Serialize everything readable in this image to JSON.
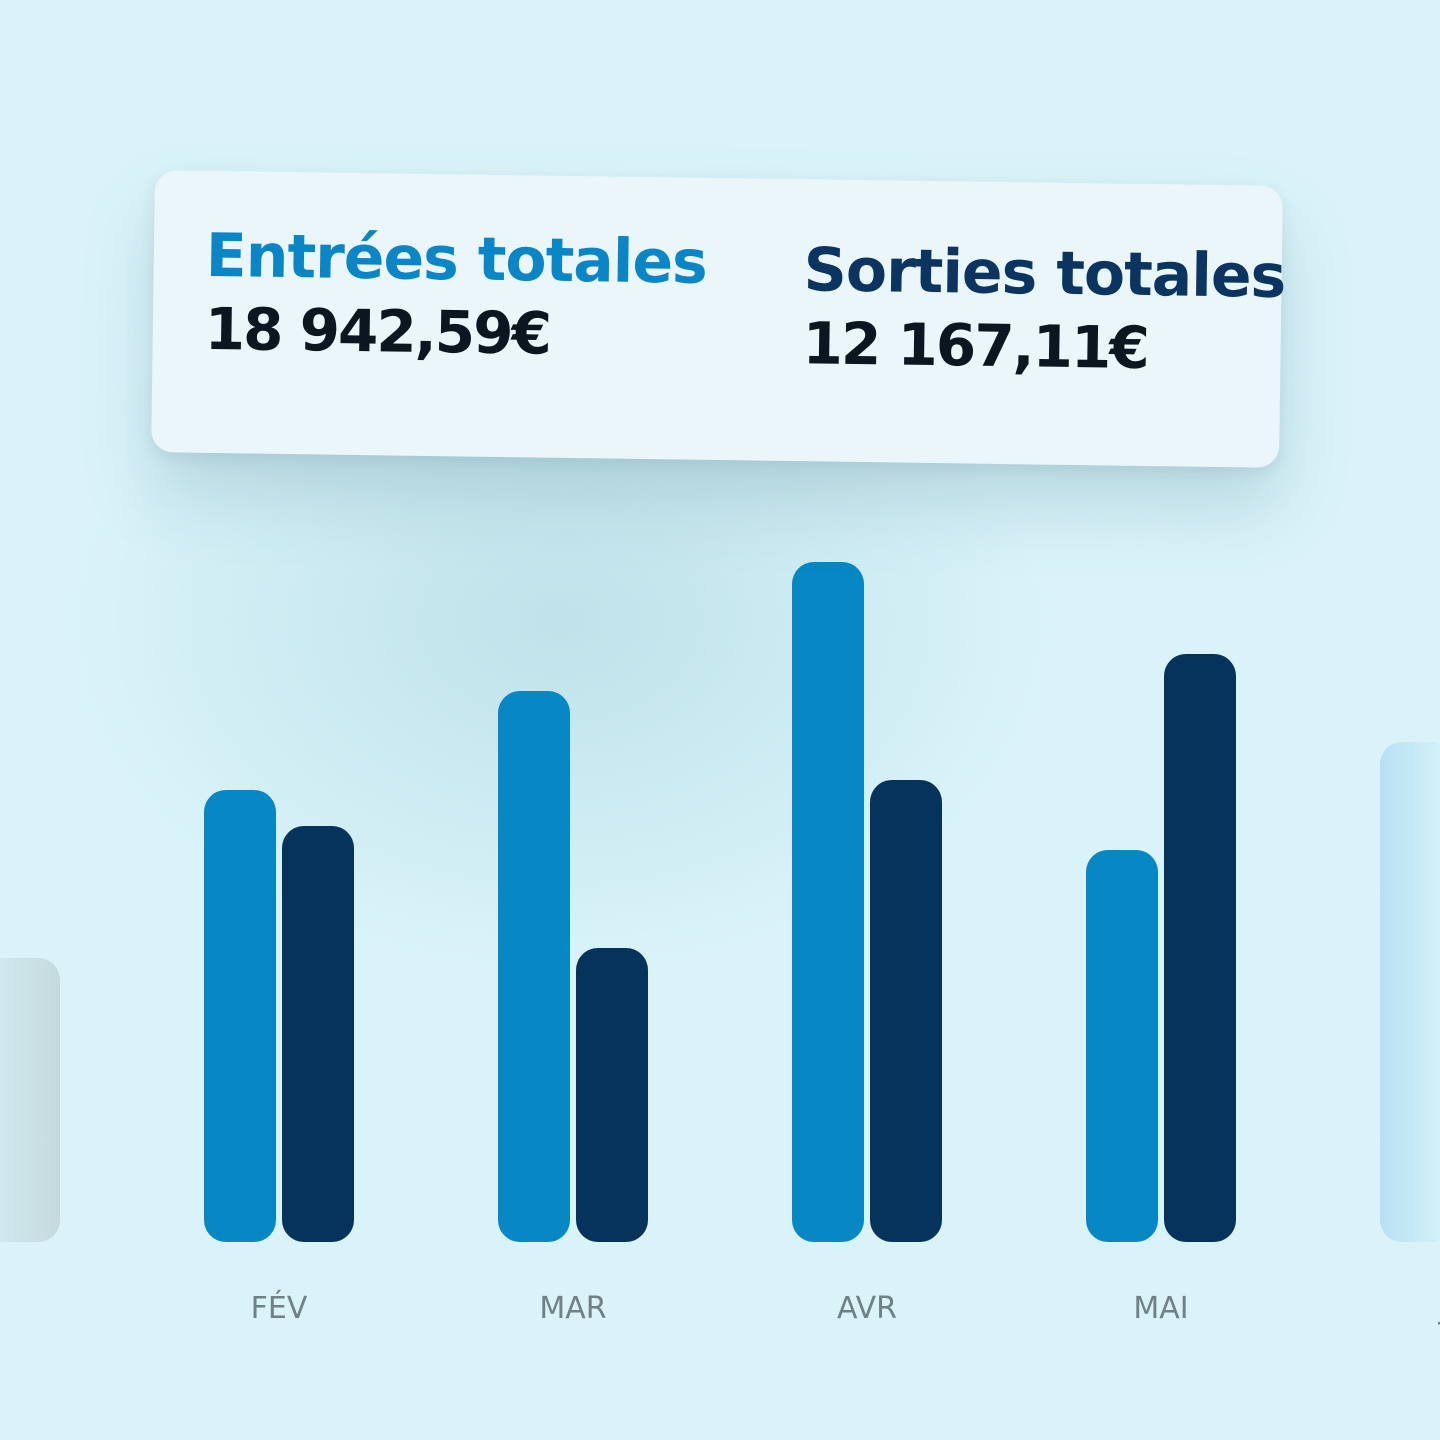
{
  "summary": {
    "income_title": "Entrées totales",
    "income_value": "18 942,59€",
    "expense_title": "Sorties totales",
    "expense_value": "12 167,11€"
  },
  "colors": {
    "income": "#0787c4",
    "expense": "#05335b",
    "background": "#d9f3f9",
    "income_title": "#0a86c7",
    "expense_title": "#0b3560"
  },
  "chart_data": {
    "type": "bar",
    "categories": [
      "FÉV",
      "MAR",
      "AVR",
      "MAI",
      "JU"
    ],
    "series": [
      {
        "key": "income",
        "values": [
          452,
          551,
          680,
          392,
          500
        ]
      },
      {
        "key": "expense",
        "values": [
          416,
          294,
          462,
          588,
          null
        ]
      }
    ],
    "partial_left_value": 284,
    "ylim": [
      0,
      700
    ],
    "grid": false,
    "legend": "none"
  }
}
